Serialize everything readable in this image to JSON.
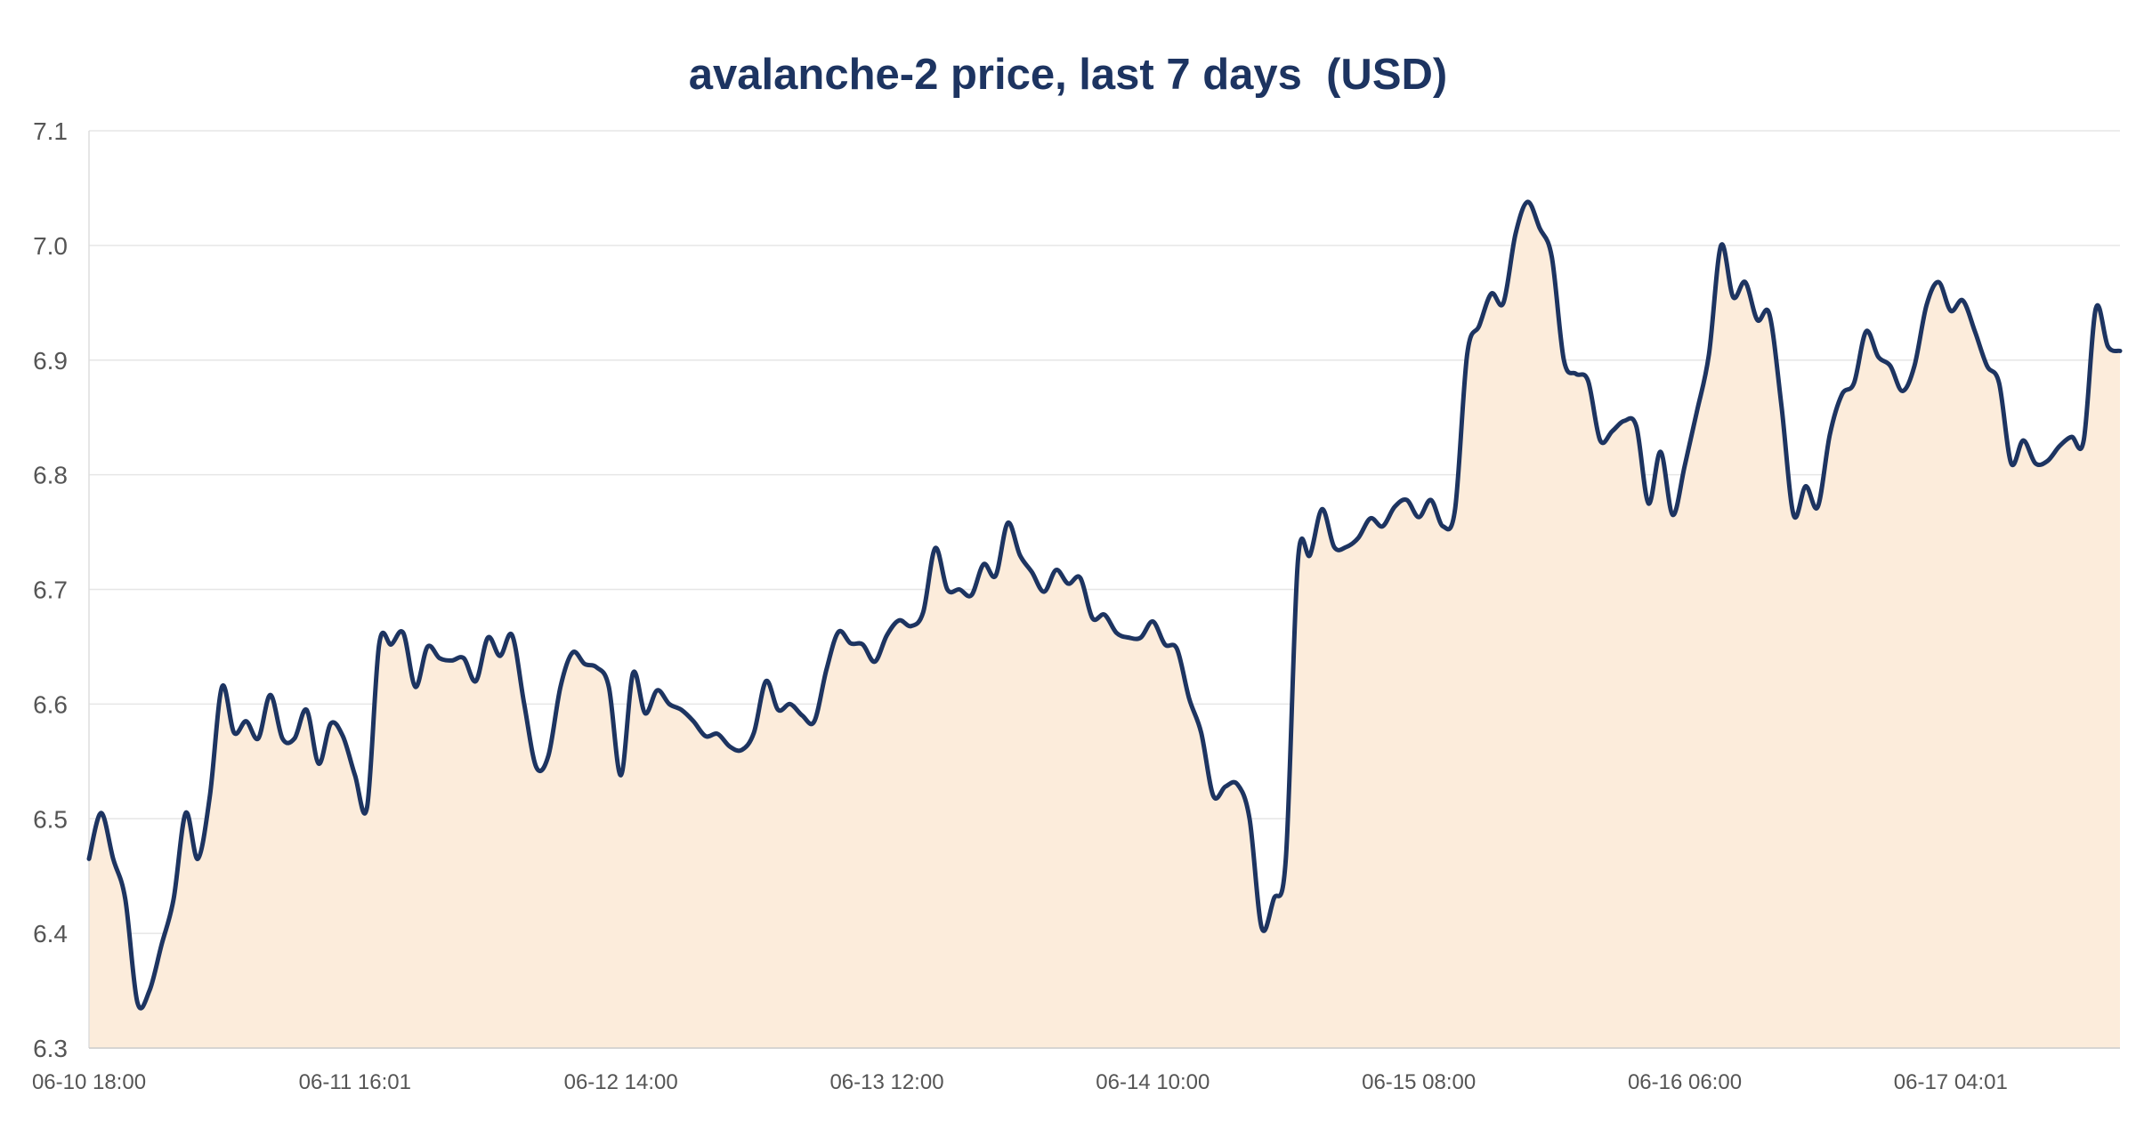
{
  "chart_data": {
    "type": "area",
    "title": "avalanche-2 price, last 7 days  (USD)",
    "xlabel": "",
    "ylabel": "",
    "ylim": [
      6.3,
      7.1
    ],
    "yticks": [
      "6.3",
      "6.4",
      "6.5",
      "6.6",
      "6.7",
      "6.8",
      "6.9",
      "7.0",
      "7.1"
    ],
    "xtick_labels": [
      "06-10 18:00",
      "06-11 16:01",
      "06-12 14:00",
      "06-13 12:00",
      "06-14 10:00",
      "06-15 08:00",
      "06-16 06:00",
      "06-17 04:01"
    ],
    "grid": true,
    "legend": "none",
    "line_color": "#1d3461",
    "fill_color": "#fcecdb",
    "x_start": "06-10 18:00",
    "x_step": "1 hour",
    "series": [
      {
        "values": [
          6.465,
          6.505,
          6.465,
          6.43,
          6.34,
          6.35,
          6.39,
          6.43,
          6.505,
          6.465,
          6.52,
          6.615,
          6.575,
          6.585,
          6.57,
          6.608,
          6.57,
          6.57,
          6.595,
          6.548,
          6.583,
          6.572,
          6.538,
          6.51,
          6.652,
          6.652,
          6.662,
          6.615,
          6.65,
          6.64,
          6.638,
          6.64,
          6.62,
          6.658,
          6.642,
          6.66,
          6.6,
          6.545,
          6.555,
          6.615,
          6.645,
          6.635,
          6.632,
          6.615,
          6.538,
          6.627,
          6.592,
          6.612,
          6.6,
          6.595,
          6.585,
          6.572,
          6.574,
          6.563,
          6.56,
          6.575,
          6.62,
          6.595,
          6.6,
          6.59,
          6.585,
          6.63,
          6.663,
          6.653,
          6.652,
          6.637,
          6.66,
          6.673,
          6.668,
          6.68,
          6.736,
          6.7,
          6.7,
          6.695,
          6.722,
          6.712,
          6.758,
          6.73,
          6.715,
          6.698,
          6.717,
          6.705,
          6.71,
          6.675,
          6.678,
          6.662,
          6.658,
          6.658,
          6.672,
          6.652,
          6.648,
          6.605,
          6.575,
          6.52,
          6.528,
          6.53,
          6.5,
          6.405,
          6.43,
          6.465,
          6.725,
          6.73,
          6.77,
          6.737,
          6.737,
          6.745,
          6.762,
          6.755,
          6.772,
          6.778,
          6.763,
          6.778,
          6.755,
          6.77,
          6.905,
          6.93,
          6.958,
          6.95,
          7.01,
          7.038,
          7.015,
          6.99,
          6.9,
          6.888,
          6.882,
          6.83,
          6.838,
          6.847,
          6.842,
          6.775,
          6.82,
          6.765,
          6.808,
          6.855,
          6.905,
          7.0,
          6.955,
          6.968,
          6.935,
          6.94,
          6.86,
          6.765,
          6.79,
          6.772,
          6.835,
          6.87,
          6.88,
          6.925,
          6.903,
          6.895,
          6.873,
          6.895,
          6.948,
          6.968,
          6.943,
          6.952,
          6.925,
          6.895,
          6.88,
          6.81,
          6.83,
          6.81,
          6.812,
          6.825,
          6.833,
          6.83,
          6.945,
          6.912,
          6.908
        ]
      }
    ]
  }
}
